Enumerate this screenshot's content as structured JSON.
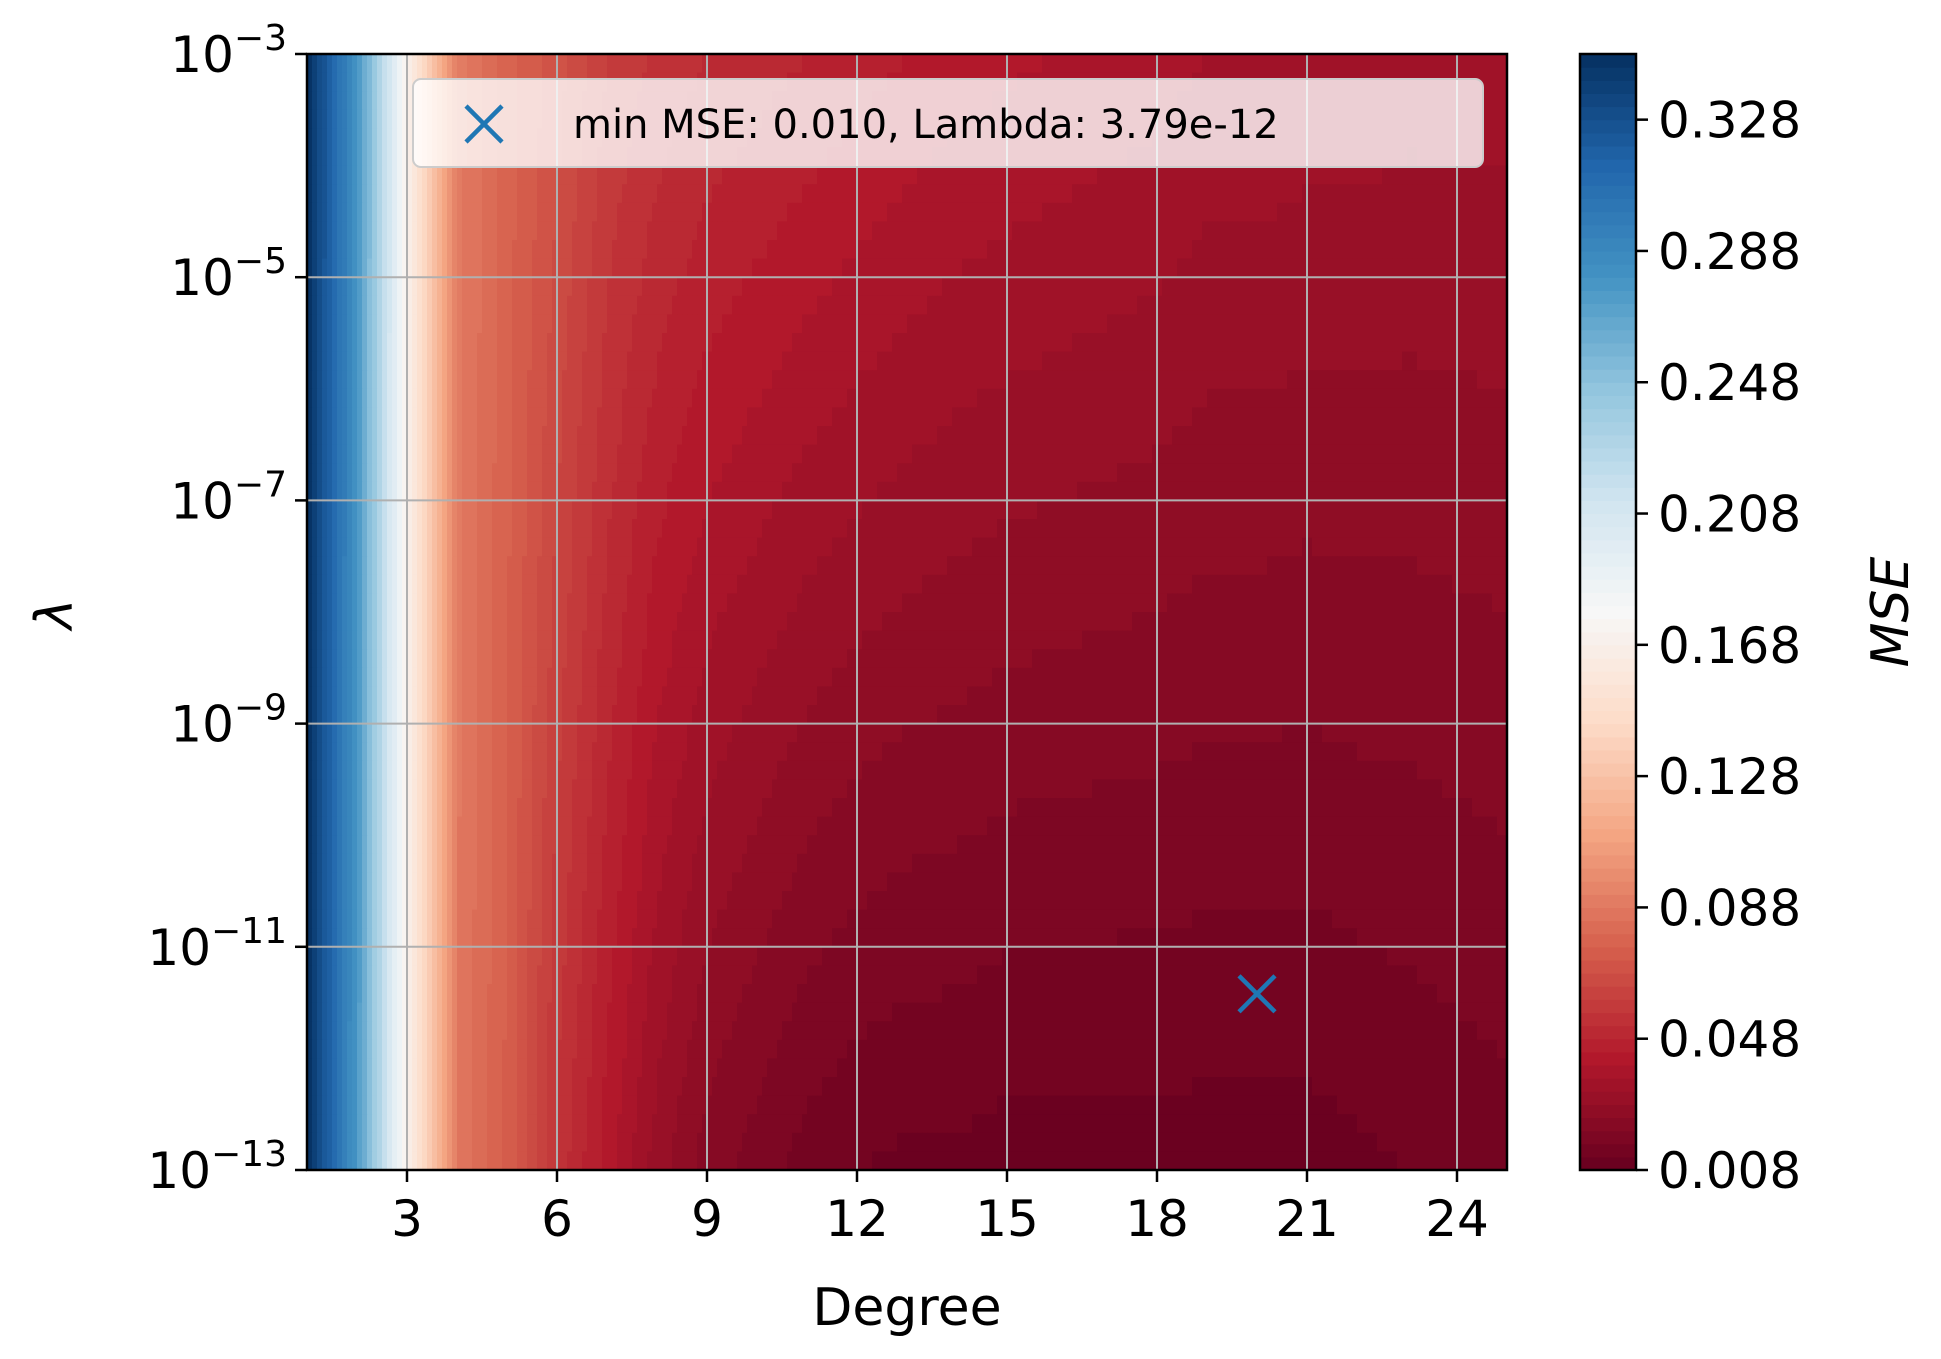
{
  "chart_data": {
    "type": "heatmap",
    "title": "",
    "xlabel": "Degree",
    "ylabel": "λ",
    "colorbar_label": "MSE",
    "xlim": [
      1,
      25
    ],
    "x_ticks": [
      3,
      6,
      9,
      12,
      15,
      18,
      21,
      24
    ],
    "y_scale": "log",
    "ylim_exponents": [
      -13,
      -3
    ],
    "y_tick_exponents": [
      -3,
      -5,
      -7,
      -9,
      -11,
      -13
    ],
    "y_tick_base": "10",
    "colorbar_range": [
      0.008,
      0.348
    ],
    "colorbar_ticks": [
      "0.008",
      "0.048",
      "0.088",
      "0.128",
      "0.168",
      "0.208",
      "0.248",
      "0.288",
      "0.328"
    ],
    "colormap": "RdBu",
    "grid": true,
    "legend_position": "top-right",
    "degree_profile": {
      "degrees": [
        1,
        2,
        3,
        4,
        5,
        6,
        7,
        8,
        9,
        10,
        11,
        12,
        13,
        14,
        15,
        16,
        17,
        18,
        19,
        20,
        21,
        22,
        23,
        24,
        25
      ],
      "mse_at_lambda_1e-3": [
        0.348,
        0.28,
        0.17,
        0.09,
        0.078,
        0.07,
        0.06,
        0.055,
        0.052,
        0.05,
        0.048,
        0.046,
        0.044,
        0.042,
        0.041,
        0.04,
        0.039,
        0.038,
        0.036,
        0.036,
        0.035,
        0.035,
        0.034,
        0.034,
        0.034
      ],
      "mse_at_lambda_1e-13": [
        0.348,
        0.26,
        0.16,
        0.088,
        0.075,
        0.055,
        0.042,
        0.03,
        0.022,
        0.018,
        0.014,
        0.012,
        0.011,
        0.011,
        0.01,
        0.01,
        0.01,
        0.01,
        0.01,
        0.01,
        0.01,
        0.011,
        0.012,
        0.013,
        0.014
      ]
    },
    "marker": {
      "symbol": "x",
      "degree": 20,
      "lambda": 3.79e-12,
      "mse": 0.01,
      "color": "#1f77b4",
      "legend_label": "min MSE: 0.010, Lambda: 3.79e-12"
    }
  }
}
